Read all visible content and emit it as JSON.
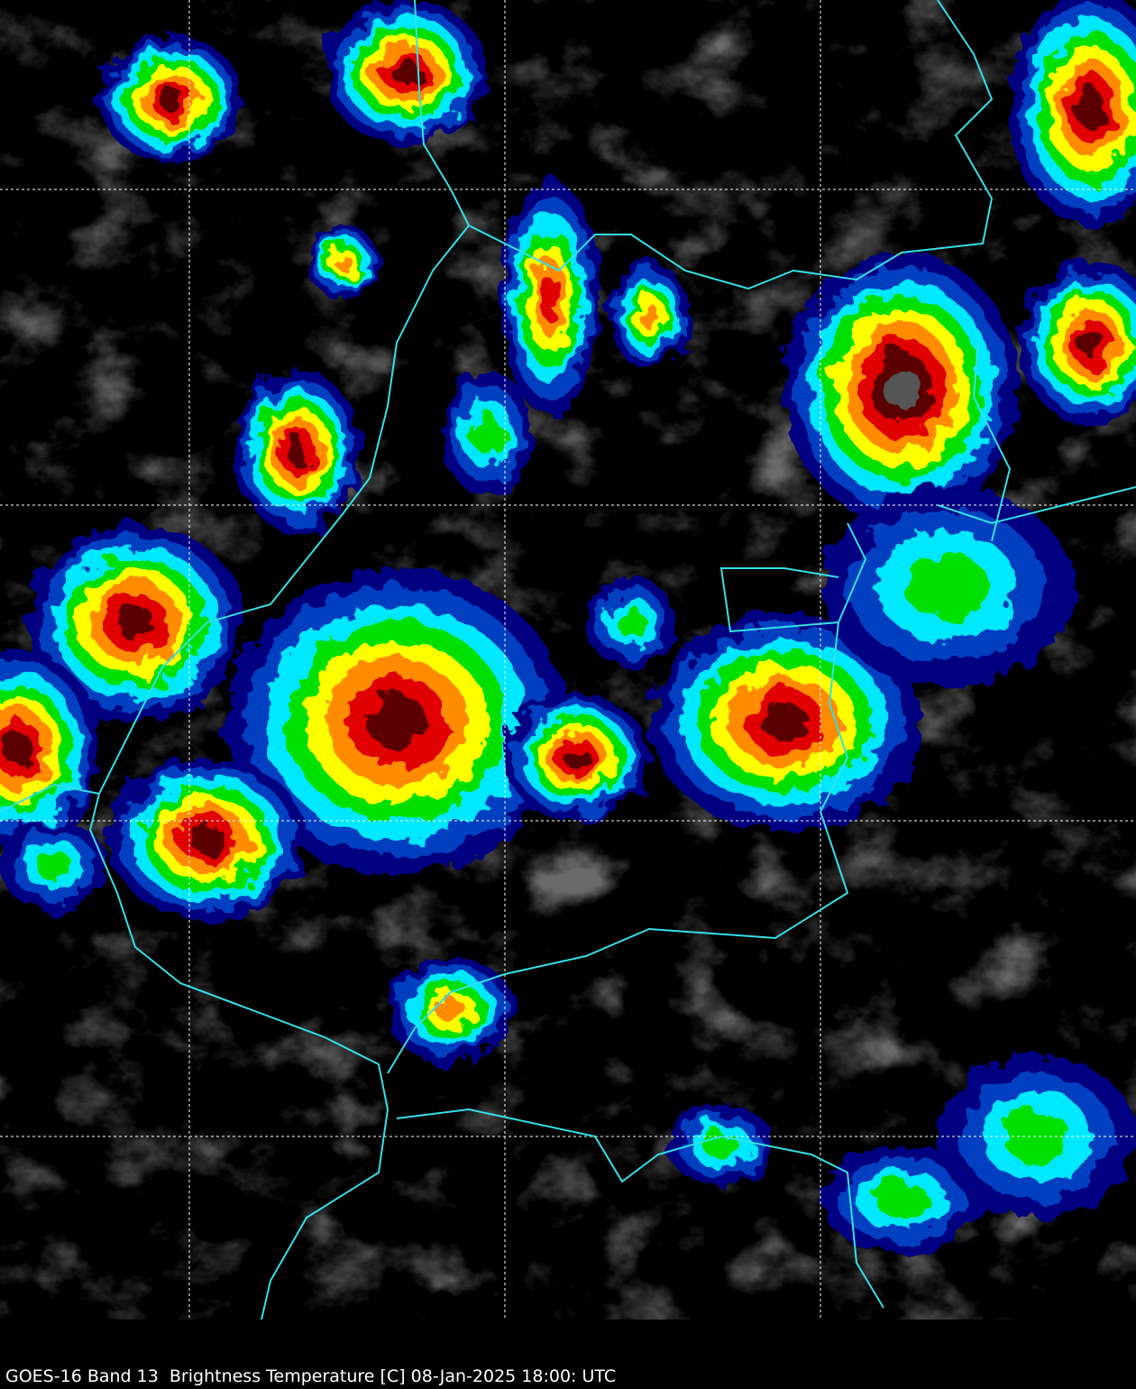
{
  "caption": "GOES-16 Band 13  Brightness Temperature [C] 08-Jan-2025 18:00: UTC",
  "map": {
    "product": "Infrared brightness temperature imagery",
    "border_color": "#33e0e8",
    "gridline_color": "#ffffff",
    "gridlines": "dashed",
    "colors": {
      "background": "#000000",
      "coldest": "#5a0000",
      "cold_red": "#e00000",
      "orange": "#ff8c00",
      "yellow": "#ffff00",
      "green": "#00e000",
      "cyan": "#00e8ff",
      "blue": "#0040c0",
      "navy": "#000080"
    }
  }
}
